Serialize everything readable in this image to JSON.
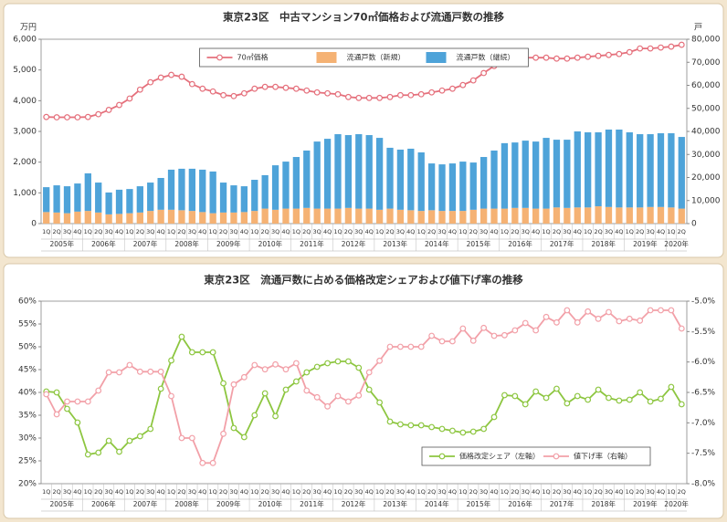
{
  "chart_data": [
    {
      "type": "combo",
      "title": "東京23区　中古マンション70㎡価格および流通戸数の推移",
      "y_unit": "万円",
      "y2_unit": "戸",
      "categories": [
        "1Q",
        "2Q",
        "3Q",
        "4Q",
        "1Q",
        "2Q",
        "3Q",
        "4Q",
        "1Q",
        "2Q",
        "3Q",
        "4Q",
        "1Q",
        "2Q",
        "3Q",
        "4Q",
        "1Q",
        "2Q",
        "3Q",
        "4Q",
        "1Q",
        "2Q",
        "3Q",
        "4Q",
        "1Q",
        "2Q",
        "3Q",
        "4Q",
        "1Q",
        "2Q",
        "3Q",
        "4Q",
        "1Q",
        "2Q",
        "3Q",
        "4Q",
        "1Q",
        "2Q",
        "3Q",
        "4Q",
        "1Q",
        "2Q",
        "3Q",
        "4Q",
        "1Q",
        "2Q",
        "3Q",
        "4Q",
        "1Q",
        "2Q",
        "3Q",
        "4Q",
        "1Q",
        "2Q",
        "3Q",
        "4Q",
        "1Q",
        "2Q",
        "3Q",
        "4Q",
        "1Q",
        "2Q"
      ],
      "year_labels": [
        "2005年",
        "2006年",
        "2007年",
        "2008年",
        "2009年",
        "2010年",
        "2011年",
        "2012年",
        "2013年",
        "2014年",
        "2015年",
        "2016年",
        "2017年",
        "2018年",
        "2019年",
        "2020年"
      ],
      "ylim": [
        0,
        6000
      ],
      "yticks": [
        0,
        {
          "value": 1000,
          "label": "1,000"
        },
        {
          "value": 2000,
          "label": "2,000"
        },
        {
          "value": 3000,
          "label": "3,000"
        },
        {
          "value": 4000,
          "label": "4,000"
        },
        {
          "value": 5000,
          "label": "5,000"
        },
        {
          "value": 6000,
          "label": "6,000"
        }
      ],
      "y2lim": [
        0,
        80000
      ],
      "y2ticks": [
        0,
        {
          "value": 10000,
          "label": "10,000"
        },
        {
          "value": 20000,
          "label": "20,000"
        },
        {
          "value": 30000,
          "label": "30,000"
        },
        {
          "value": 40000,
          "label": "40,000"
        },
        {
          "value": 50000,
          "label": "50,000"
        },
        {
          "value": 60000,
          "label": "60,000"
        },
        {
          "value": 70000,
          "label": "70,000"
        },
        {
          "value": 80000,
          "label": "80,000"
        }
      ],
      "legend": "upper center",
      "grid": false,
      "series": [
        {
          "name": "70㎡価格",
          "type": "line",
          "color": "#e5707c",
          "values": [
            3470,
            3460,
            3460,
            3460,
            3470,
            3560,
            3700,
            3860,
            4070,
            4360,
            4600,
            4750,
            4840,
            4780,
            4540,
            4390,
            4300,
            4180,
            4150,
            4240,
            4390,
            4450,
            4450,
            4420,
            4390,
            4330,
            4270,
            4240,
            4210,
            4120,
            4090,
            4090,
            4090,
            4120,
            4180,
            4180,
            4210,
            4270,
            4330,
            4390,
            4510,
            4660,
            4900,
            5130,
            5280,
            5370,
            5400,
            5400,
            5400,
            5370,
            5370,
            5400,
            5430,
            5460,
            5490,
            5520,
            5580,
            5700,
            5700,
            5730,
            5760,
            5820
          ]
        },
        {
          "name": "流通戸数（新規）",
          "type": "bar",
          "axis": "y2",
          "color": "#f5b274",
          "values": [
            5000,
            4800,
            4500,
            5200,
            5500,
            4800,
            4000,
            4200,
            4500,
            4800,
            5500,
            6000,
            6000,
            5800,
            5500,
            5000,
            4500,
            4800,
            4800,
            5000,
            5500,
            6500,
            6000,
            6500,
            6500,
            6800,
            6500,
            6500,
            6500,
            6800,
            6500,
            6500,
            6000,
            6500,
            6000,
            5800,
            5500,
            5800,
            5500,
            5500,
            5500,
            6000,
            6500,
            6500,
            6500,
            6800,
            6800,
            6500,
            6500,
            7000,
            6800,
            7000,
            7000,
            7500,
            7200,
            7000,
            7000,
            7000,
            7200,
            7200,
            7000,
            6500
          ]
        },
        {
          "name": "流通戸数（継続）",
          "type": "bar",
          "axis": "y2",
          "color": "#4ea3d9",
          "values": [
            10800,
            11800,
            11700,
            12200,
            16300,
            13000,
            9500,
            10500,
            10500,
            11400,
            12300,
            13800,
            17400,
            18000,
            18300,
            18400,
            18100,
            13000,
            11800,
            11200,
            13500,
            14500,
            19300,
            20400,
            22400,
            24900,
            29100,
            30300,
            32300,
            31600,
            32300,
            31900,
            31200,
            26400,
            26100,
            26700,
            25400,
            20300,
            20200,
            20600,
            21400,
            20500,
            22400,
            25200,
            28400,
            28400,
            29200,
            29100,
            30700,
            29400,
            29600,
            33000,
            32600,
            32100,
            33600,
            33800,
            32600,
            31800,
            31600,
            32000,
            32200,
            31100
          ]
        }
      ]
    },
    {
      "type": "line",
      "title": "東京23区　流通戸数に占める価格改定シェアおよび値下げ率の推移",
      "categories": [
        "1Q",
        "2Q",
        "3Q",
        "4Q",
        "1Q",
        "2Q",
        "3Q",
        "4Q",
        "1Q",
        "2Q",
        "3Q",
        "4Q",
        "1Q",
        "2Q",
        "3Q",
        "4Q",
        "1Q",
        "2Q",
        "3Q",
        "4Q",
        "1Q",
        "2Q",
        "3Q",
        "4Q",
        "1Q",
        "2Q",
        "3Q",
        "4Q",
        "1Q",
        "2Q",
        "3Q",
        "4Q",
        "1Q",
        "2Q",
        "3Q",
        "4Q",
        "1Q",
        "2Q",
        "3Q",
        "4Q",
        "1Q",
        "2Q",
        "3Q",
        "4Q",
        "1Q",
        "2Q",
        "3Q",
        "4Q",
        "1Q",
        "2Q",
        "3Q",
        "4Q",
        "1Q",
        "2Q",
        "3Q",
        "4Q",
        "1Q",
        "2Q",
        "3Q",
        "4Q",
        "1Q",
        "2Q"
      ],
      "year_labels": [
        "2005年",
        "2006年",
        "2007年",
        "2008年",
        "2009年",
        "2010年",
        "2011年",
        "2012年",
        "2013年",
        "2014年",
        "2015年",
        "2016年",
        "2017年",
        "2018年",
        "2019年",
        "2020年"
      ],
      "ylim": [
        20,
        60
      ],
      "yticks": [
        {
          "value": 20,
          "label": "20%"
        },
        {
          "value": 25,
          "label": "25%"
        },
        {
          "value": 30,
          "label": "30%"
        },
        {
          "value": 35,
          "label": "35%"
        },
        {
          "value": 40,
          "label": "40%"
        },
        {
          "value": 45,
          "label": "45%"
        },
        {
          "value": 50,
          "label": "50%"
        },
        {
          "value": 55,
          "label": "55%"
        },
        {
          "value": 60,
          "label": "60%"
        }
      ],
      "y2lim": [
        -8,
        -5
      ],
      "y2ticks": [
        {
          "value": -8,
          "label": "-8.0%"
        },
        {
          "value": -7.5,
          "label": "-7.5%"
        },
        {
          "value": -7,
          "label": "-7.0%"
        },
        {
          "value": -6.5,
          "label": "-6.5%"
        },
        {
          "value": -6,
          "label": "-6.0%"
        },
        {
          "value": -5.5,
          "label": "-5.5%"
        },
        {
          "value": -5,
          "label": "-5.0%"
        }
      ],
      "legend": "lower right",
      "grid": false,
      "series": [
        {
          "name": "価格改定シェア（左軸）",
          "type": "line",
          "color": "#8dc640",
          "values": [
            40.2,
            40,
            36.4,
            33.4,
            26.4,
            26.8,
            29.4,
            27,
            29.4,
            30.4,
            32,
            40.8,
            47,
            52.2,
            48.8,
            48.8,
            48.8,
            42,
            32.2,
            30.2,
            35,
            39.8,
            34.8,
            40.6,
            42.4,
            44.4,
            45.6,
            46.4,
            46.8,
            46.8,
            45.4,
            40.6,
            37.8,
            33.6,
            33,
            32.8,
            32.8,
            32.4,
            32,
            31.6,
            31.2,
            31.4,
            32,
            34.6,
            39.4,
            39.2,
            37.4,
            40.2,
            38.8,
            40.8,
            37.6,
            39.2,
            38.4,
            40.6,
            38.8,
            38.2,
            38.4,
            40,
            38,
            38.6,
            41.2,
            37.4
          ]
        },
        {
          "name": "値下げ率（右軸）",
          "type": "line",
          "axis": "y2",
          "color": "#f2a0a8",
          "values": [
            -6.53,
            -6.86,
            -6.65,
            -6.65,
            -6.65,
            -6.47,
            -6.17,
            -6.17,
            -6.05,
            -6.16,
            -6.16,
            -6.16,
            -6.56,
            -7.25,
            -7.25,
            -7.66,
            -7.66,
            -7.18,
            -6.37,
            -6.25,
            -6.05,
            -6.12,
            -6.04,
            -6.12,
            -6.02,
            -6.47,
            -6.58,
            -6.73,
            -6.56,
            -6.65,
            -6.55,
            -6.17,
            -5.98,
            -5.75,
            -5.75,
            -5.75,
            -5.75,
            -5.57,
            -5.66,
            -5.66,
            -5.45,
            -5.65,
            -5.44,
            -5.57,
            -5.56,
            -5.48,
            -5.36,
            -5.48,
            -5.26,
            -5.35,
            -5.15,
            -5.35,
            -5.17,
            -5.29,
            -5.18,
            -5.33,
            -5.29,
            -5.32,
            -5.15,
            -5.15,
            -5.15,
            -5.45
          ]
        }
      ]
    }
  ]
}
